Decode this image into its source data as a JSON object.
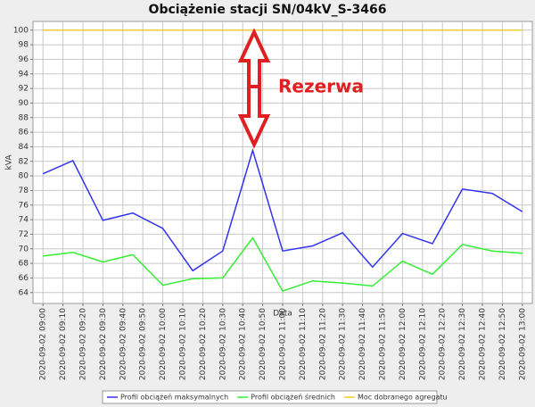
{
  "chart_data": {
    "type": "line",
    "title": "Obciążenie stacji SN/04kV_S-3466",
    "y_label": "kVA",
    "x_label": "Data",
    "annotation": "Rezerwa",
    "x": [
      "2020-09-02 09:00",
      "2020-09-02 09:15",
      "2020-09-02 09:30",
      "2020-09-02 09:45",
      "2020-09-02 10:00",
      "2020-09-02 10:15",
      "2020-09-02 10:30",
      "2020-09-02 10:45",
      "2020-09-02 11:00",
      "2020-09-02 11:15",
      "2020-09-02 11:30",
      "2020-09-02 11:45",
      "2020-09-02 12:00",
      "2020-09-02 12:15",
      "2020-09-02 12:30",
      "2020-09-02 12:45",
      "2020-09-02 13:00"
    ],
    "series": [
      {
        "name": "Profil obciążeń maksymalnych",
        "color": "#3333ee",
        "values": [
          80.3,
          82.1,
          73.9,
          74.9,
          72.8,
          67.0,
          69.7,
          83.5,
          69.7,
          70.4,
          72.2,
          67.5,
          72.1,
          70.7,
          78.2,
          77.6,
          75.1
        ]
      },
      {
        "name": "Profil obciążeń średnich",
        "color": "#33ee33",
        "values": [
          69.0,
          69.5,
          68.2,
          69.2,
          65.0,
          65.9,
          66.0,
          71.5,
          64.2,
          65.6,
          65.3,
          64.9,
          68.3,
          66.5,
          70.6,
          69.7,
          69.4
        ]
      },
      {
        "name": "Moc dobranego agregatu",
        "color": "#eecc33",
        "values": [
          100,
          100,
          100,
          100,
          100,
          100,
          100,
          100,
          100,
          100,
          100,
          100,
          100,
          100,
          100,
          100,
          100
        ]
      }
    ],
    "xlim": [
      "2020-09-02 08:55",
      "2020-09-02 13:05"
    ],
    "xticks": [
      "2020-09-02 09:00",
      "2020-09-02 09:10",
      "2020-09-02 09:20",
      "2020-09-02 09:30",
      "2020-09-02 09:40",
      "2020-09-02 09:50",
      "2020-09-02 10:00",
      "2020-09-02 10:10",
      "2020-09-02 10:20",
      "2020-09-02 10:30",
      "2020-09-02 10:40",
      "2020-09-02 10:50",
      "2020-09-02 11:00",
      "2020-09-02 11:10",
      "2020-09-02 11:20",
      "2020-09-02 11:30",
      "2020-09-02 11:40",
      "2020-09-02 11:50",
      "2020-09-02 12:00",
      "2020-09-02 12:10",
      "2020-09-02 12:20",
      "2020-09-02 12:30",
      "2020-09-02 12:40",
      "2020-09-02 12:50",
      "2020-09-02 13:00"
    ],
    "ylim": [
      62.5,
      101.2
    ],
    "yticks": [
      64,
      66,
      68,
      70,
      72,
      74,
      76,
      78,
      80,
      82,
      84,
      86,
      88,
      90,
      92,
      94,
      96,
      98,
      100
    ],
    "grid": true
  }
}
